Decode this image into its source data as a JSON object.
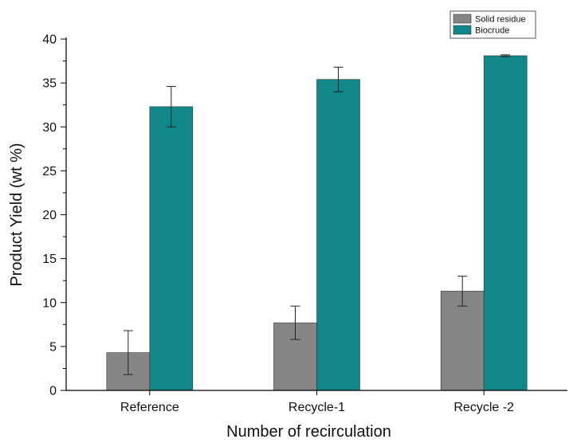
{
  "chart_data": {
    "type": "bar",
    "xlabel": "Number of recirculation",
    "ylabel": "Product Yield (wt %)",
    "ylim": [
      0,
      40
    ],
    "yticks": [
      0,
      5,
      10,
      15,
      20,
      25,
      30,
      35,
      40
    ],
    "categories": [
      "Reference",
      "Recycle-1",
      "Recycle -2"
    ],
    "series": [
      {
        "name": "Solid residue",
        "color": "#858585",
        "values": [
          4.3,
          7.7,
          11.3
        ],
        "errors": [
          2.5,
          1.9,
          1.7
        ]
      },
      {
        "name": "Biocrude",
        "color": "#10878a",
        "values": [
          32.3,
          35.4,
          38.1
        ],
        "errors": [
          2.3,
          1.4,
          0.1
        ]
      }
    ],
    "legend_position": "top-right",
    "grid": false
  }
}
